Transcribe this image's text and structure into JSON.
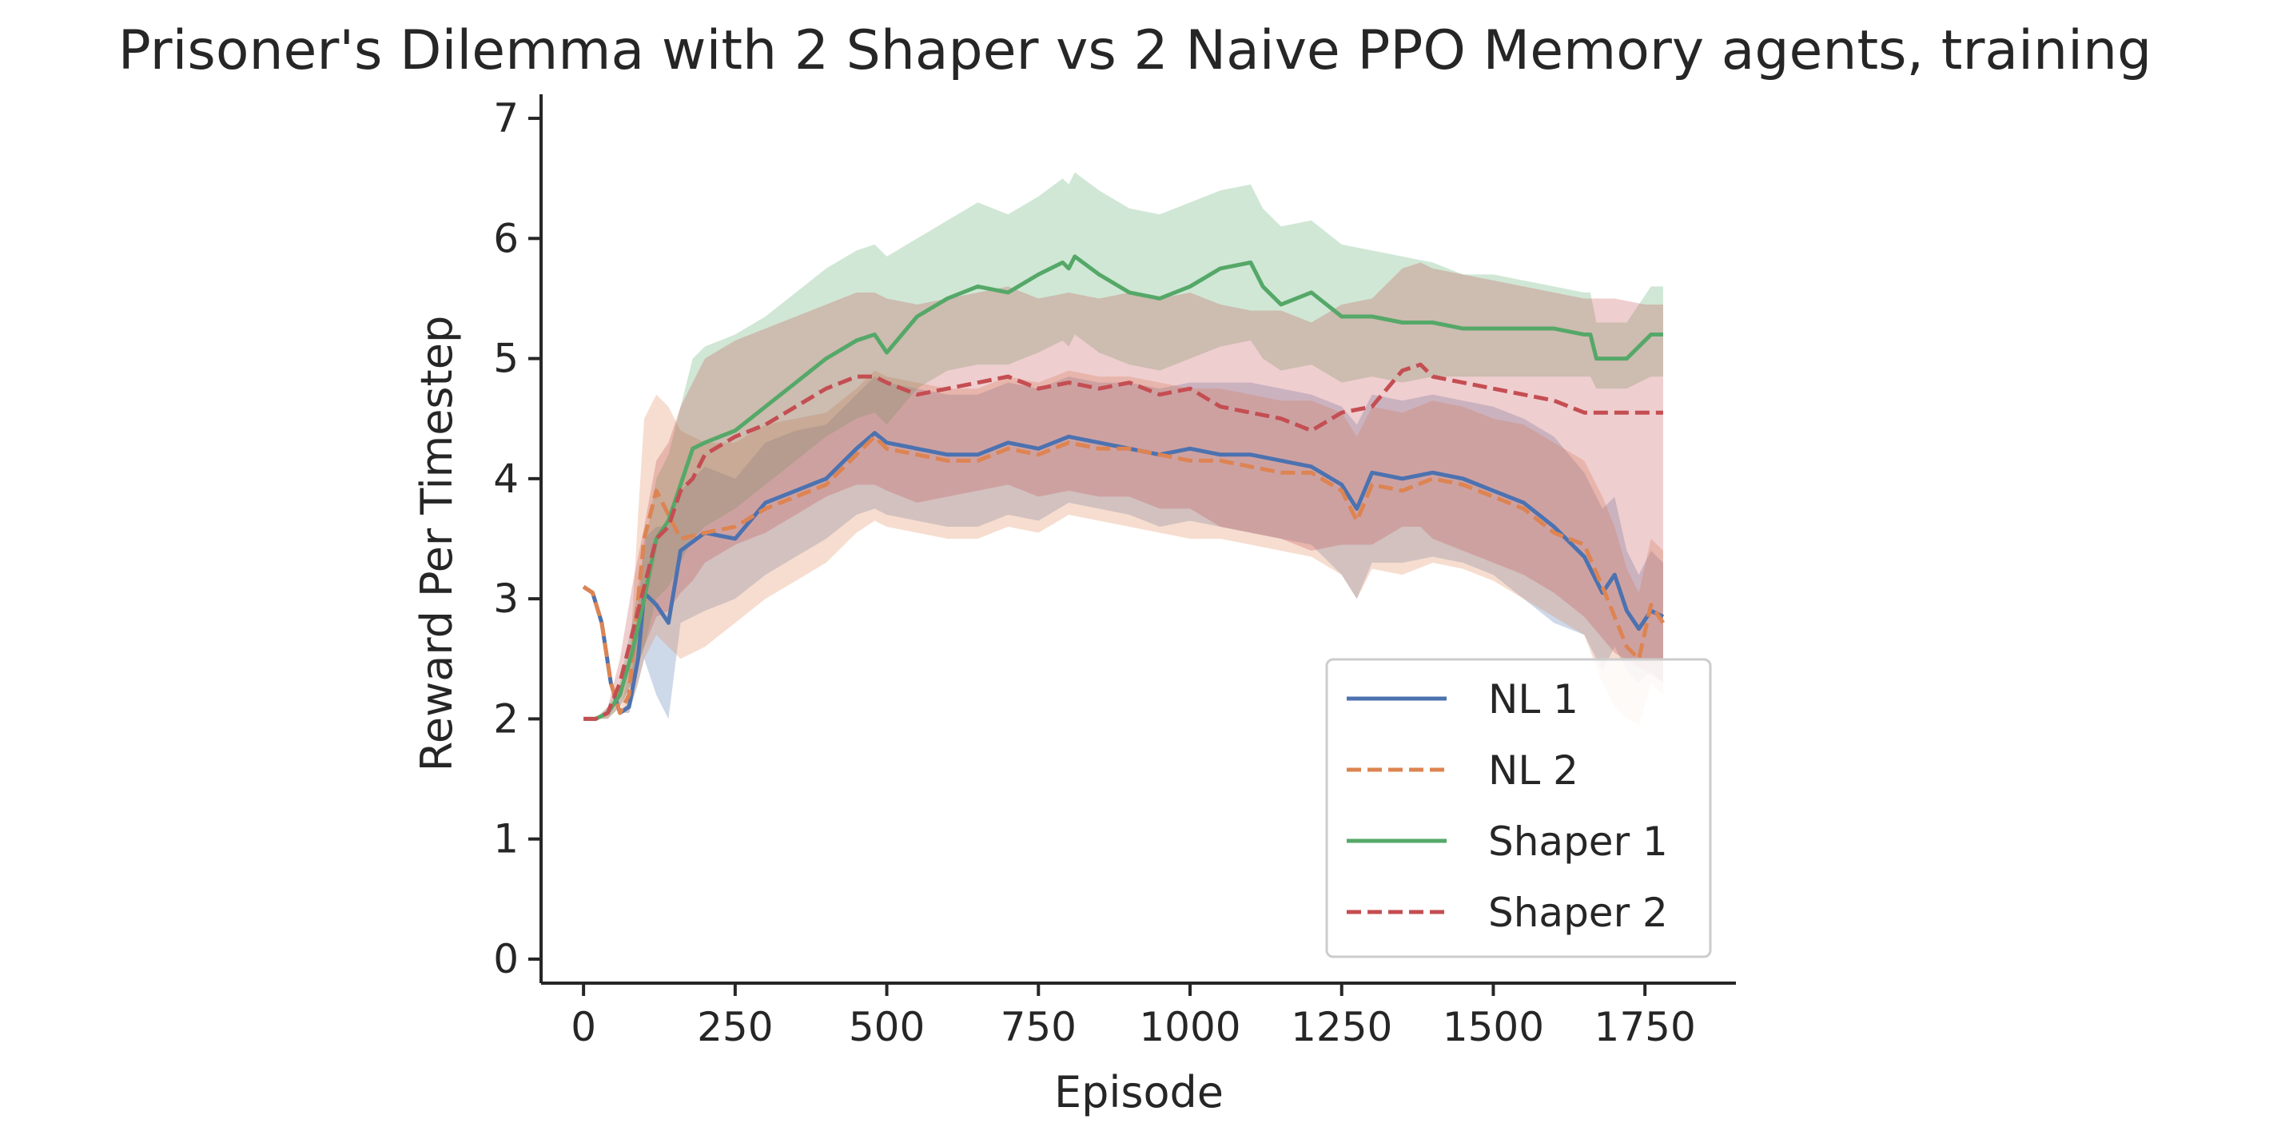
{
  "chart_data": {
    "type": "line",
    "title": "Prisoner's Dilemma with 2 Shaper vs 2 Naive PPO Memory agents, training",
    "xlabel": "Episode",
    "ylabel": "Reward Per Timestep",
    "xlim": [
      -70,
      1900
    ],
    "ylim": [
      -0.2,
      7.2
    ],
    "xticks": [
      0,
      250,
      500,
      750,
      1000,
      1250,
      1500,
      1750
    ],
    "yticks": [
      0,
      1,
      2,
      3,
      4,
      5,
      6,
      7
    ],
    "grid": false,
    "legend_position": "lower-right",
    "series": [
      {
        "name": "NL 1",
        "color": "#4c72b0",
        "dash": "solid",
        "x": [
          0,
          15,
          30,
          45,
          60,
          75,
          90,
          100,
          120,
          140,
          160,
          200,
          250,
          300,
          350,
          400,
          450,
          480,
          500,
          550,
          600,
          650,
          700,
          750,
          800,
          850,
          900,
          950,
          1000,
          1050,
          1100,
          1150,
          1200,
          1250,
          1275,
          1300,
          1350,
          1400,
          1450,
          1500,
          1550,
          1600,
          1650,
          1680,
          1700,
          1720,
          1740,
          1760,
          1780
        ],
        "y": [
          3.1,
          3.05,
          2.8,
          2.3,
          2.05,
          2.1,
          2.5,
          3.05,
          2.95,
          2.8,
          3.4,
          3.55,
          3.5,
          3.8,
          3.9,
          4.0,
          4.25,
          4.38,
          4.3,
          4.25,
          4.2,
          4.2,
          4.3,
          4.25,
          4.35,
          4.3,
          4.25,
          4.2,
          4.25,
          4.2,
          4.2,
          4.15,
          4.1,
          3.95,
          3.75,
          4.05,
          4.0,
          4.05,
          4.0,
          3.9,
          3.8,
          3.6,
          3.35,
          3.05,
          3.2,
          2.9,
          2.75,
          2.9,
          2.85
        ],
        "band_lower": [
          3.1,
          3.05,
          2.8,
          2.3,
          2.05,
          2.05,
          2.3,
          2.5,
          2.2,
          2.0,
          2.8,
          2.9,
          3.0,
          3.2,
          3.35,
          3.5,
          3.7,
          3.75,
          3.7,
          3.65,
          3.6,
          3.6,
          3.7,
          3.65,
          3.8,
          3.75,
          3.7,
          3.6,
          3.65,
          3.6,
          3.55,
          3.5,
          3.45,
          3.2,
          3.0,
          3.3,
          3.3,
          3.35,
          3.3,
          3.2,
          3.0,
          2.8,
          2.7,
          2.4,
          2.6,
          2.4,
          2.3,
          2.4,
          2.3
        ],
        "band_upper": [
          3.1,
          3.05,
          2.8,
          2.3,
          2.05,
          2.15,
          2.9,
          3.5,
          3.6,
          3.6,
          3.9,
          4.1,
          4.0,
          4.3,
          4.4,
          4.45,
          4.7,
          4.85,
          4.8,
          4.75,
          4.7,
          4.7,
          4.8,
          4.75,
          4.85,
          4.8,
          4.8,
          4.75,
          4.8,
          4.8,
          4.8,
          4.75,
          4.7,
          4.6,
          4.45,
          4.7,
          4.65,
          4.7,
          4.65,
          4.6,
          4.5,
          4.35,
          4.05,
          3.75,
          3.85,
          3.4,
          3.2,
          3.4,
          3.3
        ]
      },
      {
        "name": "NL 2",
        "color": "#dd8452",
        "dash": "dashed",
        "x": [
          0,
          15,
          30,
          45,
          60,
          75,
          90,
          100,
          120,
          140,
          160,
          200,
          250,
          300,
          350,
          400,
          450,
          480,
          500,
          550,
          600,
          650,
          700,
          750,
          800,
          850,
          900,
          950,
          1000,
          1050,
          1100,
          1150,
          1200,
          1250,
          1275,
          1300,
          1350,
          1400,
          1450,
          1500,
          1550,
          1600,
          1650,
          1680,
          1700,
          1720,
          1740,
          1760,
          1780
        ],
        "y": [
          3.1,
          3.05,
          2.8,
          2.3,
          2.05,
          2.2,
          3.0,
          3.5,
          3.9,
          3.7,
          3.5,
          3.55,
          3.6,
          3.75,
          3.85,
          3.95,
          4.2,
          4.35,
          4.25,
          4.2,
          4.15,
          4.15,
          4.25,
          4.2,
          4.3,
          4.25,
          4.25,
          4.2,
          4.15,
          4.15,
          4.1,
          4.05,
          4.05,
          3.9,
          3.65,
          3.95,
          3.9,
          4.0,
          3.95,
          3.85,
          3.75,
          3.55,
          3.45,
          3.1,
          2.85,
          2.6,
          2.5,
          2.95,
          2.8
        ],
        "band_lower": [
          3.1,
          3.05,
          2.8,
          2.3,
          2.05,
          2.05,
          2.3,
          2.5,
          2.7,
          2.6,
          2.5,
          2.6,
          2.8,
          3.0,
          3.15,
          3.3,
          3.55,
          3.65,
          3.6,
          3.55,
          3.5,
          3.5,
          3.6,
          3.55,
          3.7,
          3.65,
          3.6,
          3.55,
          3.5,
          3.5,
          3.45,
          3.4,
          3.35,
          3.2,
          3.0,
          3.25,
          3.2,
          3.3,
          3.25,
          3.15,
          3.0,
          2.85,
          2.7,
          2.3,
          2.1,
          2.0,
          1.95,
          2.3,
          2.2
        ],
        "band_upper": [
          3.1,
          3.05,
          2.8,
          2.3,
          2.05,
          2.4,
          3.7,
          4.5,
          4.7,
          4.6,
          4.4,
          4.3,
          4.3,
          4.45,
          4.5,
          4.55,
          4.75,
          4.9,
          4.85,
          4.8,
          4.75,
          4.75,
          4.85,
          4.8,
          4.9,
          4.85,
          4.85,
          4.8,
          4.75,
          4.75,
          4.7,
          4.65,
          4.65,
          4.55,
          4.35,
          4.6,
          4.55,
          4.65,
          4.6,
          4.5,
          4.45,
          4.3,
          4.15,
          3.85,
          3.6,
          3.25,
          3.05,
          3.5,
          3.4
        ]
      },
      {
        "name": "Shaper 1",
        "color": "#55a868",
        "dash": "solid",
        "x": [
          0,
          20,
          40,
          60,
          80,
          100,
          120,
          140,
          160,
          180,
          200,
          250,
          300,
          350,
          400,
          450,
          480,
          500,
          550,
          600,
          650,
          700,
          750,
          790,
          800,
          810,
          850,
          900,
          950,
          1000,
          1050,
          1100,
          1120,
          1150,
          1200,
          1250,
          1300,
          1350,
          1400,
          1450,
          1500,
          1550,
          1600,
          1650,
          1660,
          1670,
          1700,
          1720,
          1740,
          1760,
          1780
        ],
        "y": [
          2.0,
          2.0,
          2.05,
          2.2,
          2.55,
          3.0,
          3.5,
          3.65,
          3.95,
          4.25,
          4.3,
          4.4,
          4.6,
          4.8,
          5.0,
          5.15,
          5.2,
          5.05,
          5.35,
          5.5,
          5.6,
          5.55,
          5.7,
          5.8,
          5.75,
          5.85,
          5.7,
          5.55,
          5.5,
          5.6,
          5.75,
          5.8,
          5.6,
          5.45,
          5.55,
          5.35,
          5.35,
          5.3,
          5.3,
          5.25,
          5.25,
          5.25,
          5.25,
          5.2,
          5.2,
          5.0,
          5.0,
          5.0,
          5.1,
          5.2,
          5.2
        ],
        "band_lower": [
          2.0,
          2.0,
          2.0,
          2.1,
          2.3,
          2.6,
          3.0,
          3.1,
          3.3,
          3.5,
          3.6,
          3.75,
          3.95,
          4.15,
          4.35,
          4.5,
          4.55,
          4.45,
          4.75,
          4.9,
          4.95,
          4.95,
          5.05,
          5.15,
          5.1,
          5.2,
          5.05,
          4.95,
          4.9,
          5.0,
          5.1,
          5.15,
          5.0,
          4.9,
          4.95,
          4.8,
          4.85,
          4.8,
          4.85,
          4.85,
          4.85,
          4.85,
          4.85,
          4.85,
          4.85,
          4.75,
          4.75,
          4.75,
          4.8,
          4.85,
          4.85
        ],
        "band_upper": [
          2.0,
          2.0,
          2.1,
          2.3,
          2.8,
          3.4,
          4.0,
          4.2,
          4.6,
          5.0,
          5.1,
          5.2,
          5.35,
          5.55,
          5.75,
          5.9,
          5.95,
          5.85,
          6.0,
          6.15,
          6.3,
          6.2,
          6.35,
          6.5,
          6.45,
          6.55,
          6.4,
          6.25,
          6.2,
          6.3,
          6.4,
          6.45,
          6.25,
          6.1,
          6.15,
          5.95,
          5.9,
          5.85,
          5.8,
          5.7,
          5.7,
          5.65,
          5.6,
          5.55,
          5.55,
          5.3,
          5.3,
          5.3,
          5.45,
          5.6,
          5.6
        ]
      },
      {
        "name": "Shaper 2",
        "color": "#c44e52",
        "dash": "dashed",
        "x": [
          0,
          20,
          40,
          60,
          80,
          100,
          120,
          140,
          160,
          180,
          200,
          250,
          300,
          350,
          400,
          450,
          480,
          500,
          550,
          600,
          650,
          700,
          750,
          800,
          850,
          900,
          950,
          1000,
          1050,
          1100,
          1150,
          1200,
          1250,
          1300,
          1350,
          1380,
          1400,
          1450,
          1500,
          1550,
          1600,
          1650,
          1700,
          1750,
          1780
        ],
        "y": [
          2.0,
          2.0,
          2.05,
          2.3,
          2.7,
          3.1,
          3.5,
          3.6,
          3.9,
          4.0,
          4.2,
          4.35,
          4.45,
          4.6,
          4.75,
          4.85,
          4.85,
          4.8,
          4.7,
          4.75,
          4.8,
          4.85,
          4.75,
          4.8,
          4.75,
          4.8,
          4.7,
          4.75,
          4.6,
          4.55,
          4.5,
          4.4,
          4.55,
          4.6,
          4.9,
          4.95,
          4.85,
          4.8,
          4.75,
          4.7,
          4.65,
          4.55,
          4.55,
          4.55,
          4.55
        ],
        "band_lower": [
          2.0,
          2.0,
          2.0,
          2.1,
          2.3,
          2.6,
          2.85,
          2.9,
          3.05,
          3.15,
          3.3,
          3.45,
          3.55,
          3.7,
          3.85,
          3.95,
          3.95,
          3.9,
          3.8,
          3.85,
          3.9,
          3.95,
          3.85,
          3.9,
          3.85,
          3.85,
          3.75,
          3.75,
          3.6,
          3.55,
          3.5,
          3.4,
          3.45,
          3.45,
          3.6,
          3.6,
          3.5,
          3.4,
          3.3,
          3.2,
          3.05,
          2.85,
          2.55,
          2.4,
          2.3
        ],
        "band_upper": [
          2.0,
          2.0,
          2.1,
          2.5,
          3.1,
          3.6,
          4.15,
          4.3,
          4.6,
          4.8,
          5.0,
          5.15,
          5.25,
          5.35,
          5.45,
          5.55,
          5.55,
          5.5,
          5.45,
          5.5,
          5.55,
          5.6,
          5.5,
          5.55,
          5.5,
          5.55,
          5.5,
          5.55,
          5.45,
          5.4,
          5.4,
          5.3,
          5.45,
          5.5,
          5.75,
          5.8,
          5.75,
          5.7,
          5.65,
          5.6,
          5.55,
          5.5,
          5.5,
          5.45,
          5.45
        ]
      }
    ]
  }
}
